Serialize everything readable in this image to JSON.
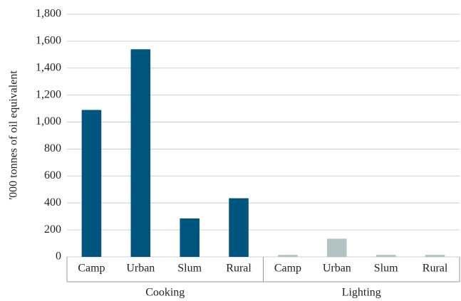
{
  "chart_data": {
    "type": "bar",
    "y_label": "'000 tonnes of oil equivalent",
    "groups": [
      {
        "name": "Cooking",
        "categories": [
          "Camp",
          "Urban",
          "Slum",
          "Rural"
        ],
        "values": [
          1090,
          1540,
          285,
          435
        ],
        "color": "#00557f"
      },
      {
        "name": "Lighting",
        "categories": [
          "Camp",
          "Urban",
          "Slum",
          "Rural"
        ],
        "values": [
          15,
          135,
          15,
          15
        ],
        "color": "#b3c3c3"
      }
    ],
    "ylim": [
      0,
      1800
    ],
    "yticks": [
      0,
      200,
      400,
      600,
      800,
      {
        "value": 1000,
        "label": "1,000"
      },
      {
        "value": 1200,
        "label": "1,200"
      },
      {
        "value": 1400,
        "label": "1,400"
      },
      {
        "value": 1600,
        "label": "1,600"
      },
      {
        "value": 1800,
        "label": "1,800"
      }
    ],
    "grid": true
  }
}
